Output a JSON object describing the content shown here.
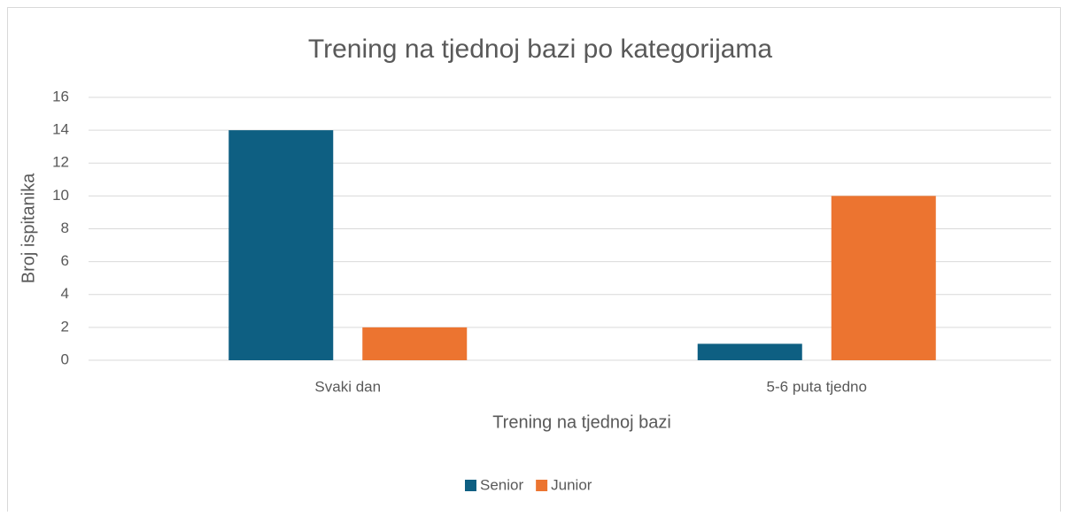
{
  "chart_data": {
    "type": "bar",
    "title": "Trening na tjednoj bazi po kategorijama",
    "x_label": "Trening na tjednoj bazi",
    "y_label": "Broj ispitanika",
    "categories": [
      "Svaki dan",
      "5-6 puta tjedno"
    ],
    "series": [
      {
        "name": "Senior",
        "color": "#0e5f82",
        "values": [
          14,
          1
        ]
      },
      {
        "name": "Junior",
        "color": "#ec7430",
        "values": [
          2,
          10
        ]
      }
    ],
    "ylim": [
      0,
      16
    ],
    "yticks": [
      0,
      2,
      4,
      6,
      8,
      10,
      12,
      14,
      16
    ],
    "grid": true,
    "legend": "bottom"
  }
}
